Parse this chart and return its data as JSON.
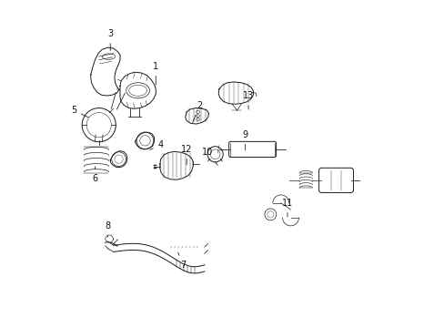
{
  "bg_color": "#ffffff",
  "fig_width": 4.89,
  "fig_height": 3.6,
  "dpi": 100,
  "line_color": "#1a1a1a",
  "label_color": "#111111",
  "labels": [
    {
      "num": "1",
      "arrow_to": [
        0.295,
        0.735
      ],
      "label_at": [
        0.295,
        0.8
      ]
    },
    {
      "num": "2",
      "arrow_to": [
        0.405,
        0.62
      ],
      "label_at": [
        0.43,
        0.68
      ]
    },
    {
      "num": "3",
      "arrow_to": [
        0.155,
        0.84
      ],
      "label_at": [
        0.155,
        0.9
      ]
    },
    {
      "num": "4",
      "arrow_to": [
        0.27,
        0.54
      ],
      "label_at": [
        0.31,
        0.56
      ]
    },
    {
      "num": "5",
      "arrow_to": [
        0.095,
        0.64
      ],
      "label_at": [
        0.042,
        0.665
      ]
    },
    {
      "num": "6",
      "arrow_to": [
        0.108,
        0.5
      ],
      "label_at": [
        0.108,
        0.455
      ]
    },
    {
      "num": "7",
      "arrow_to": [
        0.36,
        0.235
      ],
      "label_at": [
        0.38,
        0.19
      ]
    },
    {
      "num": "8",
      "arrow_to": [
        0.147,
        0.268
      ],
      "label_at": [
        0.147,
        0.31
      ]
    },
    {
      "num": "9",
      "arrow_to": [
        0.57,
        0.535
      ],
      "label_at": [
        0.57,
        0.59
      ]
    },
    {
      "num": "10",
      "arrow_to": [
        0.49,
        0.49
      ],
      "label_at": [
        0.455,
        0.535
      ]
    },
    {
      "num": "11",
      "arrow_to": [
        0.7,
        0.33
      ],
      "label_at": [
        0.7,
        0.38
      ]
    },
    {
      "num": "12",
      "arrow_to": [
        0.39,
        0.49
      ],
      "label_at": [
        0.39,
        0.545
      ]
    },
    {
      "num": "13",
      "arrow_to": [
        0.58,
        0.66
      ],
      "label_at": [
        0.58,
        0.71
      ]
    }
  ]
}
